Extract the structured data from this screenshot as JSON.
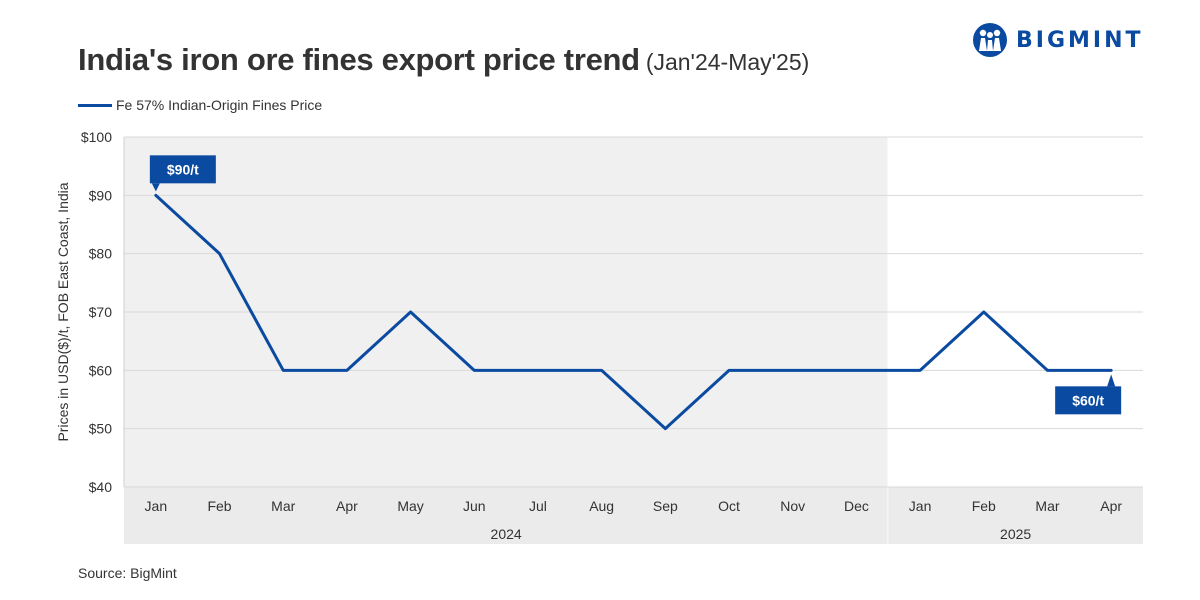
{
  "header": {
    "title": "India's iron ore fines export price trend",
    "subtitle": "(Jan'24-May'25)"
  },
  "brand": {
    "name": "BIGMINT",
    "icon": "bigmint-logo-icon",
    "color": "#0a4aa0"
  },
  "source": "Source: BigMint",
  "chart_data": {
    "type": "line",
    "title": "India's iron ore fines export price trend",
    "subtitle": "(Jan'24-May'25)",
    "ylabel": "Prices in USD($)/t, FOB East Coast, India",
    "xlabel": "",
    "ylim": [
      40,
      100
    ],
    "yticks": [
      40,
      50,
      60,
      70,
      80,
      90,
      100
    ],
    "ytick_labels": [
      "$40",
      "$50",
      "$60",
      "$70",
      "$80",
      "$90",
      "$100"
    ],
    "categories": [
      "Jan",
      "Feb",
      "Mar",
      "Apr",
      "May",
      "Jun",
      "Jul",
      "Aug",
      "Sep",
      "Oct",
      "Nov",
      "Dec",
      "Jan",
      "Feb",
      "Mar",
      "Apr"
    ],
    "groups": [
      {
        "label": "2024",
        "count": 12,
        "shaded": true
      },
      {
        "label": "2025",
        "count": 4,
        "shaded": false
      }
    ],
    "series": [
      {
        "name": "Fe 57% Indian-Origin Fines Price",
        "color": "#0a4aa0",
        "values": [
          90,
          80,
          60,
          60,
          70,
          60,
          60,
          60,
          50,
          60,
          60,
          60,
          60,
          70,
          60,
          60
        ]
      }
    ],
    "annotations": [
      {
        "index": 0,
        "text": "$90/t",
        "position": "above"
      },
      {
        "index": 15,
        "text": "$60/t",
        "position": "below"
      }
    ],
    "grid": true,
    "legend_position": "top-left",
    "colors": {
      "shade_2024": "#f0f0f0",
      "grid": "#d9d9d9",
      "axis_band": "#ebebeb",
      "callout": "#0a4aa0"
    }
  }
}
